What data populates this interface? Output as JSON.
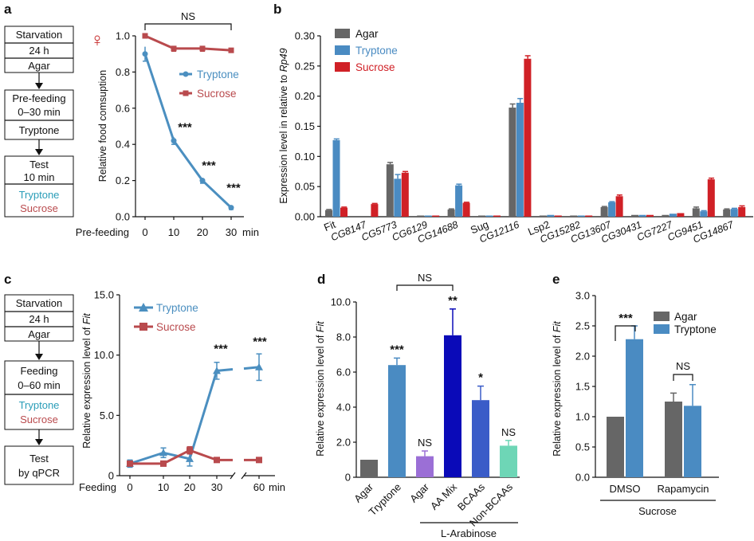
{
  "colors": {
    "agar": "#666666",
    "tryptone": "#4a8bc2",
    "sucrose": "#d02026",
    "line_tryptone": "#4b8fc0",
    "line_sucrose": "#b94a4d",
    "aa_mix": "#0a0ab8",
    "bcaas": "#3a5cc8",
    "non_bcaas": "#6ed6b6",
    "agar_arab": "#9b6fd6",
    "female": "#c62828"
  },
  "panel_a": {
    "label": "a",
    "female_symbol": "♀",
    "flow": {
      "step1": [
        "Starvation",
        "24 h"
      ],
      "step1_food": "Agar",
      "step2": [
        "Pre-feeding",
        "0–30 min"
      ],
      "step2_food": "Tryptone",
      "step3": [
        "Test",
        "10 min"
      ],
      "step3_food1": "Tryptone",
      "step3_food2": "Sucrose"
    },
    "chart_data": {
      "type": "line",
      "title": "",
      "xlabel": "Pre-feeding",
      "x_unit": "min",
      "ylabel": "Relative food comsuption",
      "x": [
        0,
        10,
        20,
        30
      ],
      "ylim": [
        0,
        1.0
      ],
      "yticks": [
        "0.0",
        "0.2",
        "0.4",
        "0.6",
        "0.8",
        "1.0"
      ],
      "series": [
        {
          "name": "Tryptone",
          "values": [
            0.9,
            0.42,
            0.2,
            0.05
          ],
          "errors": [
            0.04,
            0.02,
            0.015,
            0.01
          ]
        },
        {
          "name": "Sucrose",
          "values": [
            1.0,
            0.93,
            0.93,
            0.92
          ],
          "errors": [
            0.01,
            0.015,
            0.015,
            0.01
          ]
        }
      ],
      "annotations": [
        "***",
        "***",
        "***"
      ],
      "ns_label": "NS"
    }
  },
  "panel_b": {
    "label": "b",
    "chart_data": {
      "type": "bar",
      "ylabel_prefix": "Expression level in relative to ",
      "ylabel_gene": "Rp49",
      "ylim": [
        0,
        0.3
      ],
      "yticks": [
        "0.00",
        "0.05",
        "0.10",
        "0.15",
        "0.20",
        "0.25",
        "0.30"
      ],
      "categories": [
        "Fit",
        "CG8147",
        "CG5773",
        "CG6129",
        "CG14688",
        "Sug",
        "CG12116",
        "Lsp2",
        "CG15282",
        "CG13607",
        "CG30431",
        "CG7227",
        "CG9451",
        "CG14867"
      ],
      "series": [
        {
          "name": "Agar",
          "values": [
            0.011,
            0.0,
            0.087,
            0.002,
            0.012,
            0.002,
            0.181,
            0.002,
            0.002,
            0.016,
            0.003,
            0.003,
            0.014,
            0.012
          ],
          "errors": [
            0.001,
            0,
            0.003,
            0,
            0.001,
            0,
            0.006,
            0,
            0,
            0.001,
            0,
            0,
            0.002,
            0.001
          ]
        },
        {
          "name": "Tryptone",
          "values": [
            0.127,
            0.0,
            0.063,
            0.002,
            0.052,
            0.002,
            0.189,
            0.003,
            0.002,
            0.024,
            0.003,
            0.005,
            0.009,
            0.013
          ],
          "errors": [
            0.002,
            0,
            0.007,
            0,
            0.002,
            0,
            0.007,
            0,
            0,
            0.001,
            0,
            0,
            0.001,
            0.001
          ]
        },
        {
          "name": "Sucrose",
          "values": [
            0.015,
            0.021,
            0.073,
            0.002,
            0.023,
            0.002,
            0.262,
            0.002,
            0.002,
            0.034,
            0.003,
            0.006,
            0.062,
            0.016
          ],
          "errors": [
            0.001,
            0.001,
            0.002,
            0,
            0.001,
            0,
            0.005,
            0,
            0,
            0.002,
            0,
            0,
            0.002,
            0.002
          ]
        }
      ]
    }
  },
  "panel_c": {
    "label": "c",
    "flow": {
      "step1": [
        "Starvation",
        "24 h"
      ],
      "step1_food": "Agar",
      "step2": [
        "Feeding",
        "0–60 min"
      ],
      "step2_food1": "Tryptone",
      "step2_food2": "Sucrose",
      "step3": [
        "Test",
        "by qPCR"
      ]
    },
    "chart_data": {
      "type": "line",
      "xlabel": "Feeding",
      "x_unit": "min",
      "ylabel_prefix": "Relative expression level of ",
      "ylabel_gene": "Fit",
      "x": [
        0,
        10,
        20,
        30,
        60
      ],
      "xticks": [
        "0",
        "10",
        "20",
        "30",
        "60"
      ],
      "ylim": [
        0,
        15.0
      ],
      "yticks": [
        "0",
        "5.0",
        "10.0",
        "15.0"
      ],
      "series": [
        {
          "name": "Tryptone",
          "values": [
            1.0,
            1.9,
            1.4,
            8.7,
            9.0
          ],
          "errors": [
            0.3,
            0.4,
            0.6,
            0.7,
            1.1
          ]
        },
        {
          "name": "Sucrose",
          "values": [
            1.0,
            1.0,
            2.1,
            1.3,
            1.3
          ],
          "errors": [
            0.2,
            0.2,
            0.3,
            0.1,
            0.1
          ]
        }
      ],
      "annotations": [
        "***",
        "***"
      ]
    }
  },
  "panel_d": {
    "label": "d",
    "chart_data": {
      "type": "bar",
      "ylabel_prefix": "Relative expression level of ",
      "ylabel_gene": "Fit",
      "ylim": [
        0,
        10.0
      ],
      "yticks": [
        "0",
        "2.0",
        "4.0",
        "6.0",
        "8.0",
        "10.0"
      ],
      "categories": [
        "Agar",
        "Tryptone",
        "Agar",
        "AA Mix",
        "BCAAs",
        "Non-BCAAs"
      ],
      "values": [
        1.0,
        6.4,
        1.2,
        8.1,
        4.4,
        1.8
      ],
      "errors": [
        0,
        0.4,
        0.3,
        1.5,
        0.8,
        0.3
      ],
      "annotations": [
        "",
        "***",
        "NS",
        "**",
        "*",
        "NS"
      ],
      "group_label": "L-Arabinose",
      "ns_label": "NS"
    }
  },
  "panel_e": {
    "label": "e",
    "chart_data": {
      "type": "bar",
      "ylabel_prefix": "Relative expression level of ",
      "ylabel_gene": "Fit",
      "ylim": [
        0,
        3.0
      ],
      "yticks": [
        "0.0",
        "0.5",
        "1.0",
        "1.5",
        "2.0",
        "2.5",
        "3.0"
      ],
      "categories": [
        "DMSO",
        "Rapamycin"
      ],
      "series": [
        {
          "name": "Agar",
          "values": [
            1.0,
            1.25
          ],
          "errors": [
            0,
            0.14
          ]
        },
        {
          "name": "Tryptone",
          "values": [
            2.28,
            1.18
          ],
          "errors": [
            0.22,
            0.35
          ]
        }
      ],
      "annotations": [
        "***",
        "NS"
      ],
      "group_label": "Sucrose"
    }
  }
}
